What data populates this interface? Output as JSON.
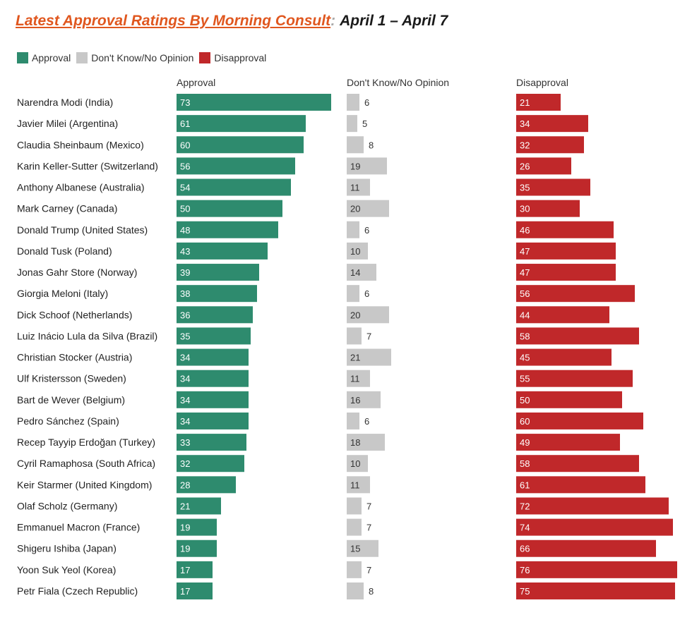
{
  "title": {
    "main": "Latest Approval Ratings By Morning Consult",
    "separator": ":",
    "dates": "April 1 – April 7"
  },
  "legend": [
    {
      "label": "Approval",
      "color": "#2e8b6e"
    },
    {
      "label": "Don't Know/No Opinion",
      "color": "#c8c8c8"
    },
    {
      "label": "Disapproval",
      "color": "#c0282a"
    }
  ],
  "chart_data": {
    "type": "bar",
    "orientation": "horizontal",
    "title": "Latest Approval Ratings By Morning Consult: April 1 – April 7",
    "categories": [
      "Narendra Modi (India)",
      "Javier Milei (Argentina)",
      "Claudia Sheinbaum (Mexico)",
      "Karin Keller-Sutter (Switzerland)",
      "Anthony Albanese (Australia)",
      "Mark Carney (Canada)",
      "Donald Trump (United States)",
      "Donald Tusk (Poland)",
      "Jonas Gahr Store (Norway)",
      "Giorgia Meloni (Italy)",
      "Dick Schoof (Netherlands)",
      "Luiz Inácio Lula da Silva (Brazil)",
      "Christian Stocker (Austria)",
      "Ulf Kristersson (Sweden)",
      "Bart de Wever (Belgium)",
      "Pedro Sánchez (Spain)",
      "Recep Tayyip Erdoğan (Turkey)",
      "Cyril Ramaphosa (South Africa)",
      "Keir Starmer (United Kingdom)",
      "Olaf Scholz (Germany)",
      "Emmanuel Macron (France)",
      "Shigeru Ishiba (Japan)",
      "Yoon Suk Yeol (Korea)",
      "Petr Fiala (Czech Republic)"
    ],
    "series": [
      {
        "name": "Approval",
        "color": "#2e8b6e",
        "values": [
          73,
          61,
          60,
          56,
          54,
          50,
          48,
          43,
          39,
          38,
          36,
          35,
          34,
          34,
          34,
          34,
          33,
          32,
          28,
          21,
          19,
          19,
          17,
          17
        ]
      },
      {
        "name": "Don't Know/No Opinion",
        "color": "#c8c8c8",
        "values": [
          6,
          5,
          8,
          19,
          11,
          20,
          6,
          10,
          14,
          6,
          20,
          7,
          21,
          11,
          16,
          6,
          18,
          10,
          11,
          7,
          7,
          15,
          7,
          8
        ]
      },
      {
        "name": "Disapproval",
        "color": "#c0282a",
        "values": [
          21,
          34,
          32,
          26,
          35,
          30,
          46,
          47,
          47,
          56,
          44,
          58,
          45,
          55,
          50,
          60,
          49,
          58,
          61,
          72,
          74,
          66,
          76,
          75
        ]
      }
    ],
    "legend_position": "top-left",
    "grid": false
  }
}
